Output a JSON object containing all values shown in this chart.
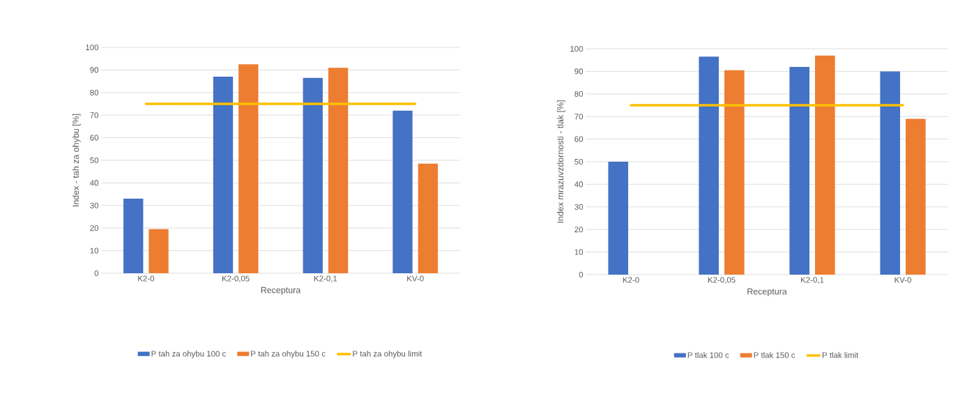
{
  "chart_data": [
    {
      "type": "bar",
      "xlabel": "Receptura",
      "ylabel": "Index - tah za ohybu [%]",
      "categories": [
        "K2-0",
        "K2-0,05",
        "K2-0,1",
        "KV-0"
      ],
      "series": [
        {
          "name": "P tah za ohybu 100 c",
          "color": "#4472c4",
          "values": [
            33,
            87,
            86.5,
            72
          ]
        },
        {
          "name": "P tah za ohybu 150 c",
          "color": "#ed7d31",
          "values": [
            19.5,
            92.5,
            91,
            48.5
          ]
        },
        {
          "name": "P tah za ohybu limit",
          "color": "#ffc000",
          "type": "line",
          "values": [
            75,
            75,
            75,
            75
          ]
        }
      ],
      "ylim": [
        0,
        100
      ],
      "yticks": [
        0,
        10,
        20,
        30,
        40,
        50,
        60,
        70,
        80,
        90,
        100
      ],
      "grid": "y",
      "legend": "bottom"
    },
    {
      "type": "bar",
      "xlabel": "Receptura",
      "ylabel": "Index mrazuvzdornosti - tlak [%]",
      "categories": [
        "K2-0",
        "K2-0,05",
        "K2-0,1",
        "KV-0"
      ],
      "series": [
        {
          "name": "P tlak 100 c",
          "color": "#4472c4",
          "values": [
            50,
            96.5,
            92,
            90
          ]
        },
        {
          "name": "P tlak 150 c",
          "color": "#ed7d31",
          "values": [
            null,
            90.5,
            97,
            69
          ]
        },
        {
          "name": "P tlak limit",
          "color": "#ffc000",
          "type": "line",
          "values": [
            75,
            75,
            75,
            75
          ]
        }
      ],
      "ylim": [
        0,
        100
      ],
      "yticks": [
        0,
        10,
        20,
        30,
        40,
        50,
        60,
        70,
        80,
        90,
        100
      ],
      "grid": "y",
      "legend": "bottom"
    }
  ]
}
